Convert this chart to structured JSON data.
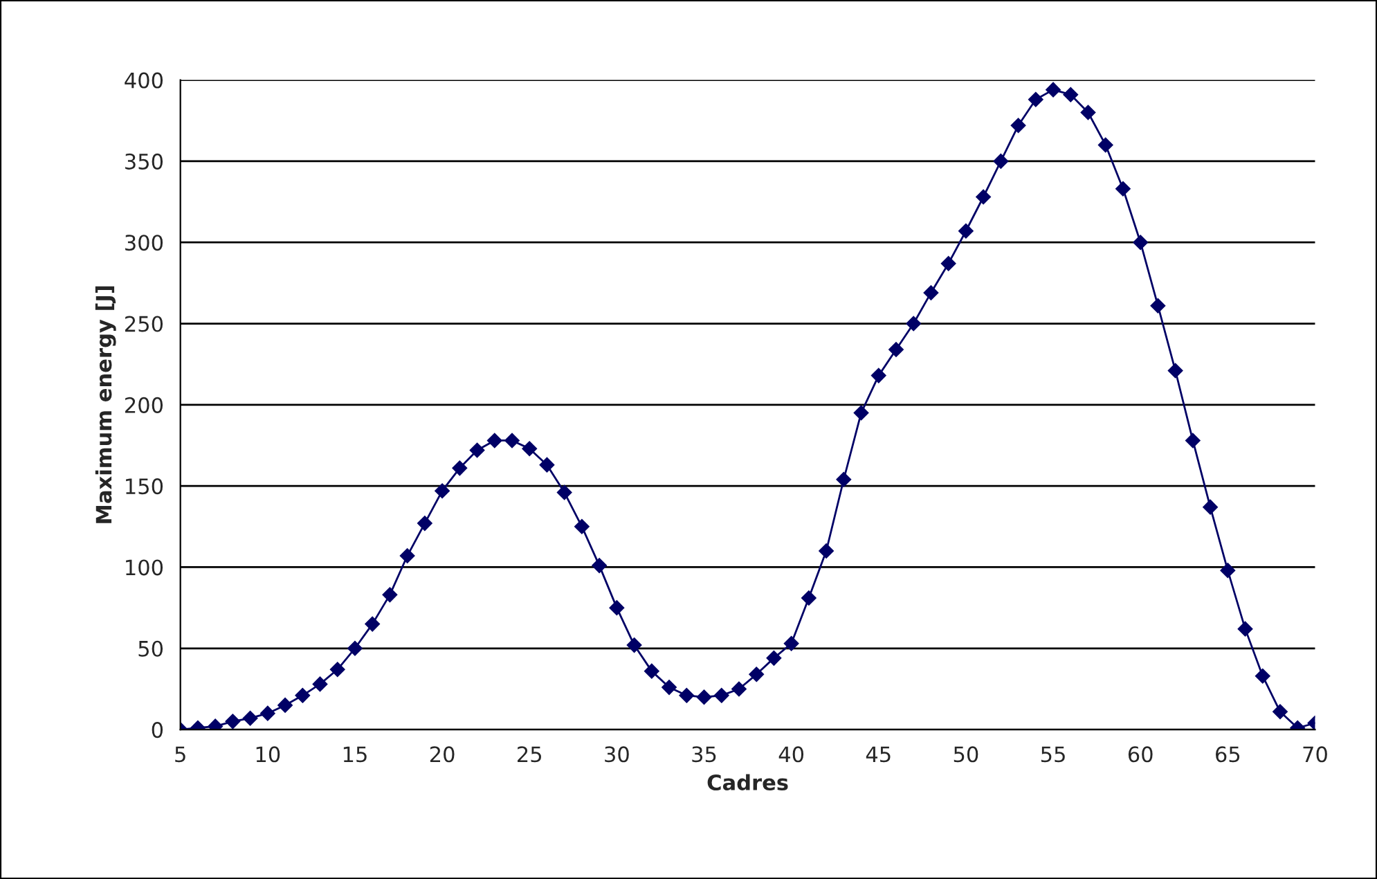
{
  "chart_data": {
    "type": "line",
    "xlabel": "Cadres",
    "ylabel": "Maximum energy [J]",
    "x": [
      5,
      6,
      7,
      8,
      9,
      10,
      11,
      12,
      13,
      14,
      15,
      16,
      17,
      18,
      19,
      20,
      21,
      22,
      23,
      24,
      25,
      26,
      27,
      28,
      29,
      30,
      31,
      32,
      33,
      34,
      35,
      36,
      37,
      38,
      39,
      40,
      41,
      42,
      43,
      44,
      45,
      46,
      47,
      48,
      49,
      50,
      51,
      52,
      53,
      54,
      55,
      56,
      57,
      58,
      59,
      60,
      61,
      62,
      63,
      64,
      65,
      66,
      67,
      68,
      69,
      70
    ],
    "series": [
      {
        "color": "#000066",
        "values": [
          0,
          1,
          2,
          5,
          7,
          10,
          15,
          21,
          28,
          37,
          50,
          65,
          83,
          107,
          127,
          147,
          161,
          172,
          178,
          178,
          173,
          163,
          146,
          125,
          101,
          75,
          52,
          36,
          26,
          21,
          20,
          21,
          25,
          34,
          44,
          53,
          81,
          110,
          154,
          195,
          218,
          234,
          250,
          269,
          287,
          307,
          328,
          350,
          372,
          388,
          394,
          391,
          380,
          360,
          333,
          300,
          261,
          221,
          178,
          137,
          98,
          62,
          33,
          11,
          1,
          4
        ]
      }
    ],
    "xlim": [
      5,
      70
    ],
    "xticks": [
      5,
      10,
      15,
      20,
      25,
      30,
      35,
      40,
      45,
      50,
      55,
      60,
      65,
      70
    ],
    "ylim": [
      0,
      400
    ],
    "yticks": [
      0,
      50,
      100,
      150,
      200,
      250,
      300,
      350,
      400
    ],
    "grid": "y",
    "marker": "diamond",
    "line_style": "solid",
    "legend": false
  }
}
